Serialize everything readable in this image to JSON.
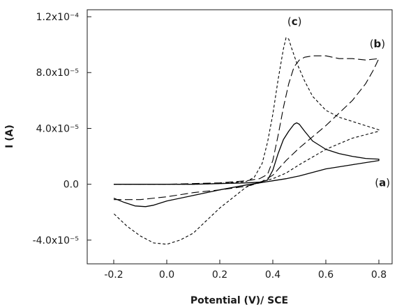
{
  "chart_data": {
    "type": "line",
    "xlabel": "Potential (V)/ SCE",
    "ylabel": "I (A)",
    "xlim": [
      -0.3,
      0.85
    ],
    "ylim": [
      -5.7e-05,
      0.000125
    ],
    "x_ticks": [
      -0.2,
      0.0,
      0.2,
      0.4,
      0.6,
      0.8
    ],
    "x_tick_labels": [
      "-0.2",
      "0.0",
      "0.2",
      "0.4",
      "0.6",
      "0.8"
    ],
    "y_ticks": [
      -4e-05,
      0.0,
      4e-05,
      8e-05,
      0.00012
    ],
    "y_tick_labels": [
      "-4.0x10⁻⁵",
      "0.0",
      "4.0x10⁻⁵",
      "8.0x10⁻⁵",
      "1.2x10⁻⁴"
    ],
    "grid": false,
    "legend": "none",
    "series": [
      {
        "name": "(a)",
        "style": "solid",
        "color": "#000000",
        "label_at": [
          0.785,
          -1.5e-06
        ],
        "x": [
          -0.2,
          -0.1,
          0.0,
          0.1,
          0.2,
          0.3,
          0.35,
          0.38,
          0.4,
          0.42,
          0.44,
          0.46,
          0.48,
          0.49,
          0.5,
          0.52,
          0.55,
          0.6,
          0.65,
          0.7,
          0.75,
          0.8,
          0.8,
          0.7,
          0.6,
          0.5,
          0.45,
          0.4,
          0.35,
          0.3,
          0.2,
          0.1,
          0.0,
          -0.05,
          -0.08,
          -0.12,
          -0.16,
          -0.2
        ],
        "y": [
          0.0,
          0.0,
          0.0,
          0.0,
          5e-07,
          1e-06,
          1.5e-06,
          3e-06,
          1e-05,
          2.2e-05,
          3.2e-05,
          3.8e-05,
          4.3e-05,
          4.4e-05,
          4.3e-05,
          3.8e-05,
          3.1e-05,
          2.5e-05,
          2.2e-05,
          2e-05,
          1.85e-05,
          1.8e-05,
          1.7e-05,
          1.4e-05,
          1.1e-05,
          6e-06,
          4e-06,
          2.5e-06,
          1e-06,
          -5e-07,
          -4e-06,
          -8e-06,
          -1.2e-05,
          -1.5e-05,
          -1.6e-05,
          -1.55e-05,
          -1.3e-05,
          -1e-05
        ]
      },
      {
        "name": "(b)",
        "style": "long-dash",
        "color": "#000000",
        "label_at": [
          0.765,
          9.8e-05
        ],
        "x": [
          -0.2,
          -0.1,
          0.0,
          0.1,
          0.2,
          0.3,
          0.35,
          0.38,
          0.4,
          0.42,
          0.44,
          0.46,
          0.48,
          0.5,
          0.52,
          0.55,
          0.6,
          0.65,
          0.7,
          0.75,
          0.8,
          0.8,
          0.78,
          0.75,
          0.7,
          0.6,
          0.5,
          0.45,
          0.4,
          0.35,
          0.3,
          0.2,
          0.1,
          0.0,
          -0.1,
          -0.2
        ],
        "y": [
          0.0,
          0.0,
          0.0,
          5e-07,
          1e-06,
          2.5e-06,
          4e-06,
          7e-06,
          1.7e-05,
          3.5e-05,
          5.5e-05,
          7.2e-05,
          8.4e-05,
          8.9e-05,
          9.1e-05,
          9.2e-05,
          9.2e-05,
          9e-05,
          9e-05,
          8.9e-05,
          9e-05,
          9e-05,
          8.2e-05,
          7.2e-05,
          6e-05,
          4.2e-05,
          2.6e-05,
          1.7e-05,
          6.5e-06,
          1e-06,
          -1.5e-06,
          -4e-06,
          -6e-06,
          -9e-06,
          -1.1e-05,
          -1.1e-05
        ]
      },
      {
        "name": "(c)",
        "style": "short-dash",
        "color": "#000000",
        "label_at": [
          0.455,
          0.000114
        ],
        "x": [
          -0.2,
          -0.1,
          0.0,
          0.1,
          0.2,
          0.3,
          0.33,
          0.36,
          0.38,
          0.4,
          0.42,
          0.44,
          0.45,
          0.46,
          0.47,
          0.49,
          0.52,
          0.55,
          0.6,
          0.65,
          0.7,
          0.75,
          0.8,
          0.8,
          0.7,
          0.6,
          0.5,
          0.45,
          0.4,
          0.35,
          0.3,
          0.2,
          0.1,
          0.05,
          0.0,
          -0.05,
          -0.1,
          -0.15,
          -0.2
        ],
        "y": [
          0.0,
          0.0,
          0.0,
          0.0,
          5e-07,
          2e-06,
          5e-06,
          1.5e-05,
          3e-05,
          5e-05,
          7.5e-05,
          9.7e-05,
          0.000105,
          0.000104,
          9.8e-05,
          8.7e-05,
          7.4e-05,
          6.3e-05,
          5.3e-05,
          4.8e-05,
          4.5e-05,
          4.2e-05,
          3.9e-05,
          3.8e-05,
          3.3e-05,
          2.5e-05,
          1.4e-05,
          8e-06,
          4e-06,
          1.5e-06,
          -2e-06,
          -1.7e-05,
          -3.5e-05,
          -4e-05,
          -4.3e-05,
          -4.2e-05,
          -3.7e-05,
          -3e-05,
          -2.1e-05
        ]
      }
    ]
  }
}
